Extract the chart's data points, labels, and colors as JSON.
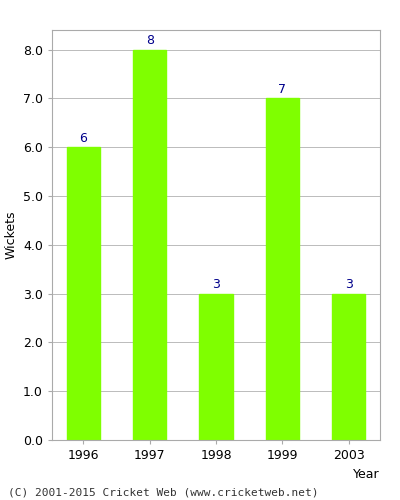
{
  "categories": [
    "1996",
    "1997",
    "1998",
    "1999",
    "2003"
  ],
  "values": [
    6,
    8,
    3,
    7,
    3
  ],
  "bar_color": "#7FFF00",
  "bar_edgecolor": "#7FFF00",
  "title": "",
  "xlabel": "Year",
  "ylabel": "Wickets",
  "ylim": [
    0,
    8.4
  ],
  "yticks": [
    0.0,
    1.0,
    2.0,
    3.0,
    4.0,
    5.0,
    6.0,
    7.0,
    8.0
  ],
  "label_color": "#00008B",
  "label_fontsize": 9,
  "axis_fontsize": 9,
  "tick_fontsize": 9,
  "footer_text": "(C) 2001-2015 Cricket Web (www.cricketweb.net)",
  "footer_fontsize": 8,
  "grid_color": "#bbbbbb",
  "background_color": "#ffffff",
  "bar_width": 0.5
}
